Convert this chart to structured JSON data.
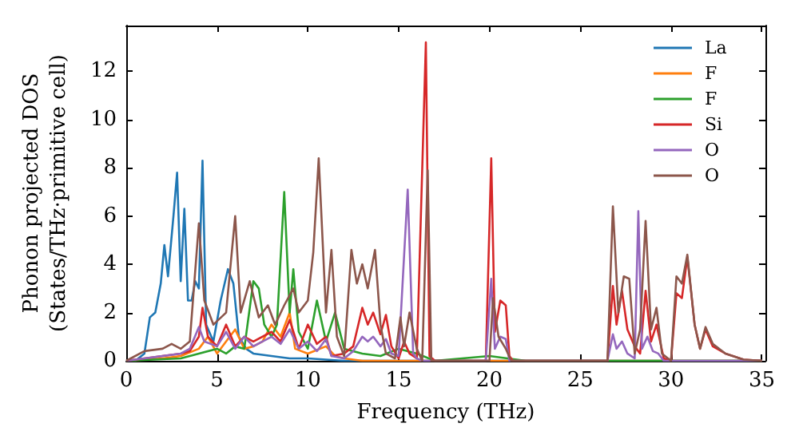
{
  "chart_data": {
    "type": "line",
    "xlabel": "Frequency (THz)",
    "ylabel": "Phonon projected DOS\n(States/THz·primitive cell)",
    "xlim": [
      0,
      35.2
    ],
    "ylim": [
      0,
      13.9
    ],
    "xticks": [
      0,
      5,
      10,
      15,
      20,
      25,
      30,
      35
    ],
    "yticks": [
      0,
      2,
      4,
      6,
      8,
      10,
      12
    ],
    "grid": false,
    "legend": "top right",
    "marker": "none",
    "line_style": "solid",
    "series": [
      {
        "name": "La",
        "color": "#1f77b4",
        "x": [
          0,
          0.5,
          1,
          1.3,
          1.6,
          1.9,
          2.1,
          2.3,
          2.6,
          2.8,
          3.0,
          3.2,
          3.4,
          3.6,
          3.8,
          4.0,
          4.2,
          4.4,
          4.8,
          5.2,
          5.6,
          5.9,
          6.2,
          6.6,
          7,
          8,
          9,
          10,
          12,
          35
        ],
        "values": [
          0,
          0,
          0.3,
          1.8,
          2.0,
          3.2,
          4.8,
          3.5,
          6.0,
          7.8,
          3.3,
          6.3,
          2.5,
          2.5,
          3.3,
          3.0,
          8.3,
          1.5,
          0.8,
          2.5,
          3.8,
          3.2,
          1.0,
          0.5,
          0.3,
          0.2,
          0.1,
          0.1,
          0,
          0
        ]
      },
      {
        "name": "F",
        "color": "#ff7f0e",
        "x": [
          0,
          2,
          3,
          4,
          4.5,
          5,
          5.5,
          6,
          6.5,
          7,
          7.5,
          8,
          8.5,
          9,
          9.3,
          10,
          11,
          11.5,
          12,
          13,
          35
        ],
        "values": [
          0,
          0.1,
          0.2,
          0.5,
          1.0,
          0.3,
          0.8,
          1.3,
          0.5,
          0.6,
          0.8,
          1.5,
          1.0,
          2.0,
          0.5,
          0.3,
          0.6,
          0.2,
          0.1,
          0,
          0
        ]
      },
      {
        "name": "F",
        "color": "#2ca02c",
        "x": [
          0,
          3,
          4,
          5,
          5.5,
          6,
          6.5,
          7,
          7.3,
          7.6,
          8,
          8.3,
          8.7,
          9.0,
          9.2,
          9.5,
          10,
          10.5,
          11,
          11.5,
          12,
          13,
          14,
          15,
          16,
          17,
          20,
          21,
          22,
          35
        ],
        "values": [
          0,
          0.1,
          0.3,
          0.5,
          0.3,
          0.6,
          0.5,
          3.3,
          3.0,
          1.5,
          1.0,
          1.5,
          7.0,
          2.0,
          3.8,
          1.2,
          0.5,
          2.5,
          0.8,
          2.0,
          0.5,
          0.3,
          0.2,
          0.5,
          0.3,
          0,
          0.2,
          0.1,
          0,
          0
        ]
      },
      {
        "name": "Si",
        "color": "#d62728",
        "x": [
          0,
          2,
          3,
          3.5,
          4,
          4.2,
          4.5,
          5,
          5.5,
          6,
          6.5,
          7,
          8,
          8.5,
          9,
          9.5,
          10,
          10.5,
          11,
          11.3,
          12,
          12.5,
          13,
          13.3,
          13.6,
          14,
          14.3,
          14.6,
          15,
          15.3,
          15.6,
          16,
          16.5,
          16.7,
          17,
          19.8,
          20.1,
          20.3,
          20.6,
          20.9,
          21.1,
          21.3,
          26.5,
          26.8,
          27,
          27.3,
          27.6,
          28,
          28.3,
          28.6,
          28.9,
          29.2,
          29.6,
          30,
          30.3,
          30.6,
          30.9,
          31.3,
          31.6,
          31.9,
          32.3,
          33,
          34,
          35
        ],
        "values": [
          0,
          0.2,
          0.3,
          0.4,
          1.0,
          2.2,
          1.0,
          0.6,
          1.5,
          0.6,
          1.0,
          0.8,
          1.2,
          0.8,
          1.7,
          0.5,
          1.5,
          0.7,
          1.0,
          0.2,
          0.3,
          0.6,
          2.2,
          1.5,
          2.0,
          1.1,
          1.9,
          0.6,
          0.1,
          0.8,
          0.3,
          0.1,
          13.2,
          0.2,
          0,
          0,
          8.4,
          1.2,
          2.5,
          2.3,
          0.2,
          0,
          0,
          3.1,
          1.5,
          2.9,
          1.3,
          0.6,
          0.3,
          2.9,
          0.8,
          1.5,
          0.1,
          0,
          2.8,
          2.6,
          4.3,
          1.5,
          0.5,
          1.3,
          0.6,
          0.3,
          0.05,
          0
        ]
      },
      {
        "name": "O",
        "color": "#9467bd",
        "x": [
          0,
          2,
          3,
          3.5,
          4,
          4.3,
          5,
          5.5,
          6,
          6.5,
          7,
          8,
          8.5,
          9,
          9.5,
          10,
          10.5,
          11,
          11.3,
          12,
          12.5,
          13,
          13.3,
          13.6,
          14,
          14.3,
          14.6,
          15,
          15.5,
          15.8,
          16,
          16.3,
          19.8,
          20.1,
          20.3,
          20.6,
          20.9,
          21.1,
          26.5,
          26.8,
          27,
          27.3,
          27.6,
          28,
          28.2,
          28.4,
          28.7,
          29,
          29.3,
          29.6,
          35
        ],
        "values": [
          0,
          0.2,
          0.3,
          0.5,
          1.4,
          0.8,
          0.6,
          1.2,
          0.5,
          1.0,
          0.6,
          1.0,
          0.7,
          1.3,
          0.5,
          0.8,
          0.4,
          0.9,
          0.2,
          0.1,
          0.4,
          1.0,
          0.8,
          1.0,
          0.6,
          0.9,
          0.3,
          0.2,
          7.1,
          0.3,
          0.1,
          0,
          0,
          3.4,
          0.5,
          1.0,
          0.9,
          0,
          0,
          1.1,
          0.5,
          0.8,
          0.3,
          0.1,
          6.2,
          0.5,
          1.0,
          0.4,
          0.3,
          0,
          0
        ]
      },
      {
        "name": "O",
        "color": "#8c564b",
        "x": [
          0,
          1,
          2,
          2.5,
          3,
          3.5,
          4,
          4.3,
          4.8,
          5.5,
          6,
          6.3,
          6.8,
          7.3,
          7.8,
          8.2,
          8.7,
          9.2,
          9.5,
          10,
          10.3,
          10.6,
          11,
          11.3,
          11.6,
          12,
          12.4,
          12.7,
          13,
          13.3,
          13.7,
          14,
          14.3,
          14.8,
          15.1,
          15.3,
          15.6,
          16,
          16.3,
          16.6,
          16.8,
          20,
          20.2,
          20.5,
          20.9,
          21.2,
          26.5,
          26.8,
          27.1,
          27.4,
          27.7,
          28,
          28.3,
          28.6,
          28.9,
          29.2,
          29.5,
          30,
          30.3,
          30.6,
          30.9,
          31.3,
          31.6,
          31.9,
          32.3,
          33,
          34,
          35
        ],
        "values": [
          0,
          0.4,
          0.5,
          0.7,
          0.5,
          0.8,
          5.7,
          2.5,
          1.5,
          2.0,
          6.0,
          2.0,
          3.3,
          1.8,
          2.3,
          1.5,
          2.3,
          3.0,
          2.0,
          2.5,
          4.5,
          8.4,
          2.0,
          4.6,
          1.0,
          0.2,
          4.6,
          3.2,
          4.0,
          3.0,
          4.6,
          1.5,
          0.3,
          0.1,
          1.8,
          0.6,
          2.0,
          0.5,
          0,
          7.9,
          0,
          0,
          2.6,
          1.0,
          0.5,
          0,
          0,
          6.4,
          2.0,
          3.5,
          3.4,
          0.3,
          1.3,
          5.8,
          1.3,
          2.2,
          0.3,
          0,
          3.5,
          3.2,
          4.4,
          1.5,
          0.5,
          1.4,
          0.7,
          0.3,
          0.05,
          0
        ]
      }
    ]
  }
}
